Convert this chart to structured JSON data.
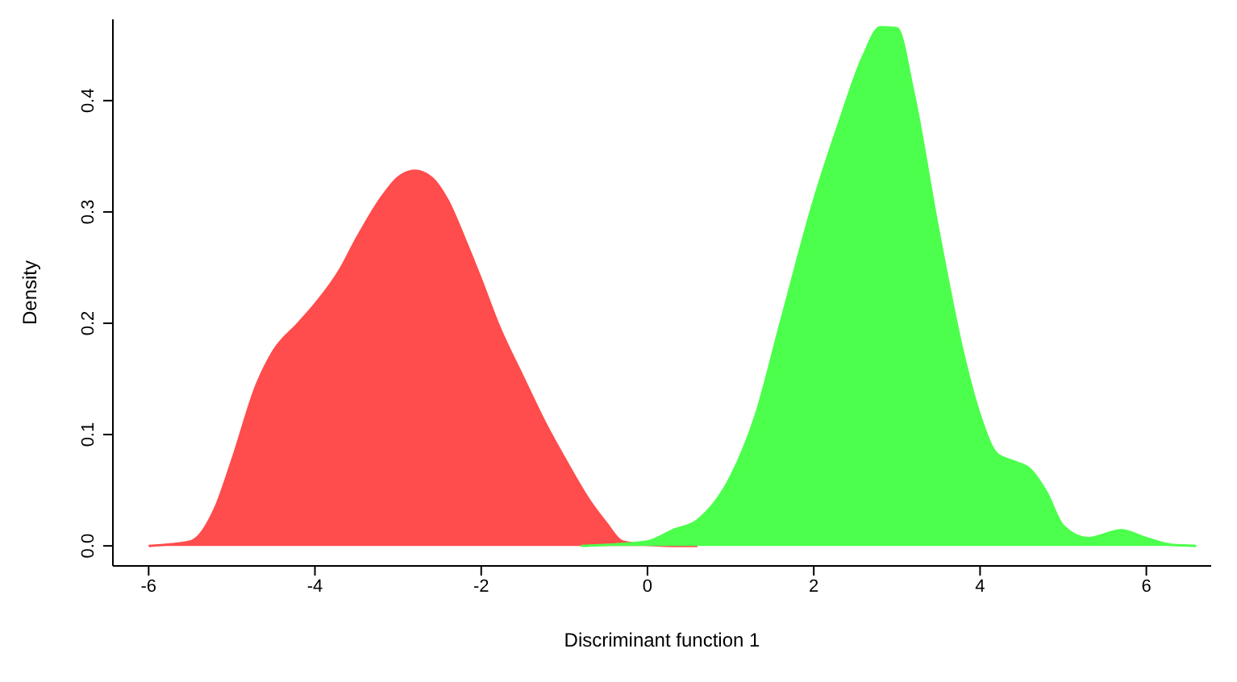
{
  "chart_data": {
    "type": "area",
    "xlabel": "Discriminant function 1",
    "ylabel": "Density",
    "xlim": [
      -6.43,
      6.78
    ],
    "ylim": [
      -0.018,
      0.473
    ],
    "xticks": [
      -6,
      -4,
      -2,
      0,
      2,
      4,
      6
    ],
    "yticks": [
      {
        "value": 0,
        "label": "0.0"
      },
      0.1,
      0.2,
      0.3,
      0.4
    ],
    "grid": false,
    "legend": false,
    "series": [
      {
        "color": "#ff4c4c",
        "x": [
          -6,
          -5.5,
          -5.2,
          -5,
          -4.7,
          -4.5,
          -4.2,
          -4,
          -3.7,
          -3.5,
          -3.2,
          -3,
          -2.8,
          -2.6,
          -2.4,
          -2.2,
          -2,
          -1.8,
          -1.5,
          -1.2,
          -1,
          -0.7,
          -0.5,
          -0.3,
          0,
          0.3,
          0.6
        ],
        "values": [
          0,
          0.004,
          0.034,
          0.076,
          0.145,
          0.175,
          0.2,
          0.217,
          0.248,
          0.276,
          0.313,
          0.331,
          0.337,
          0.331,
          0.31,
          0.276,
          0.239,
          0.2,
          0.152,
          0.106,
          0.079,
          0.041,
          0.021,
          0.004,
          0.001,
          0,
          0
        ]
      },
      {
        "color": "#4cff4c",
        "x": [
          -0.8,
          0,
          0.3,
          0.6,
          1,
          1.3,
          1.6,
          2,
          2.3,
          2.6,
          2.8,
          3,
          3.2,
          3.5,
          3.8,
          4,
          4.2,
          4.4,
          4.6,
          4.8,
          5,
          5.3,
          5.7,
          6,
          6.3,
          6.6
        ],
        "values": [
          0,
          0.004,
          0.014,
          0.023,
          0.062,
          0.117,
          0.2,
          0.31,
          0.379,
          0.441,
          0.466,
          0.465,
          0.407,
          0.283,
          0.172,
          0.117,
          0.083,
          0.076,
          0.069,
          0.048,
          0.018,
          0.007,
          0.014,
          0.007,
          0.001,
          0
        ]
      }
    ]
  }
}
